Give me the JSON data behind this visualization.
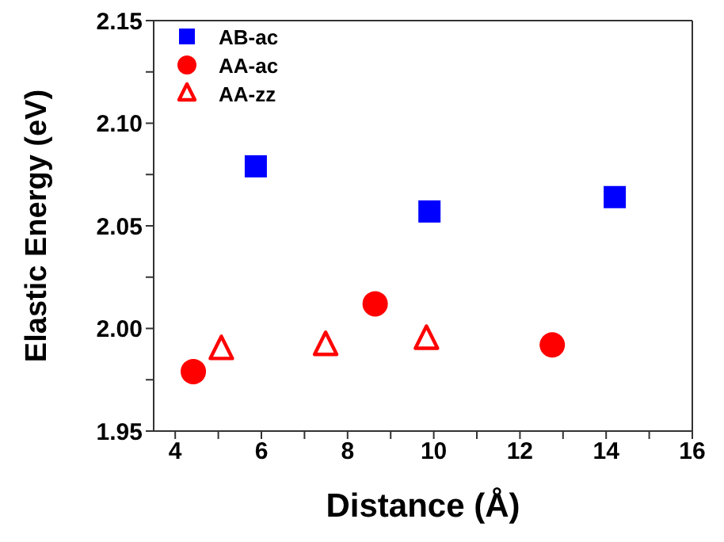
{
  "chart_data": {
    "type": "scatter",
    "xlabel": "Distance (Å)",
    "ylabel": "Elastic Energy (eV)",
    "xlim": [
      3.5,
      16
    ],
    "xticks": [
      4,
      {
        "value": 5,
        "label": null
      },
      6,
      {
        "value": 7,
        "label": null
      },
      8,
      {
        "value": 9,
        "label": null
      },
      10,
      {
        "value": 11,
        "label": null
      },
      12,
      {
        "value": 13,
        "label": null
      },
      14,
      {
        "value": 15,
        "label": null
      },
      16
    ],
    "ylim": [
      1.95,
      2.15
    ],
    "yticks": [
      1.95,
      {
        "value": 1.975,
        "label": null
      },
      {
        "value": 2,
        "label": "2.00"
      },
      {
        "value": 2.025,
        "label": null
      },
      2.05,
      {
        "value": 2.075,
        "label": null
      },
      {
        "value": 2.1,
        "label": "2.10"
      },
      {
        "value": 2.125,
        "label": null
      },
      2.15
    ],
    "legend": "top left",
    "series": [
      {
        "name": "AB-ac",
        "color": "#0000ff",
        "marker": "square",
        "x": [
          5.87,
          9.9,
          14.2
        ],
        "values": [
          2.079,
          2.057,
          2.064
        ]
      },
      {
        "name": "AA-ac",
        "color": "#ff0000",
        "marker": "circle",
        "x": [
          4.42,
          8.64,
          12.75
        ],
        "values": [
          1.979,
          2.012,
          1.992
        ]
      },
      {
        "name": "AA-zz",
        "color": "#ff0000",
        "marker": "triangle",
        "x": [
          5.07,
          7.49,
          9.83
        ],
        "values": [
          1.99,
          1.992,
          1.995
        ]
      }
    ]
  }
}
